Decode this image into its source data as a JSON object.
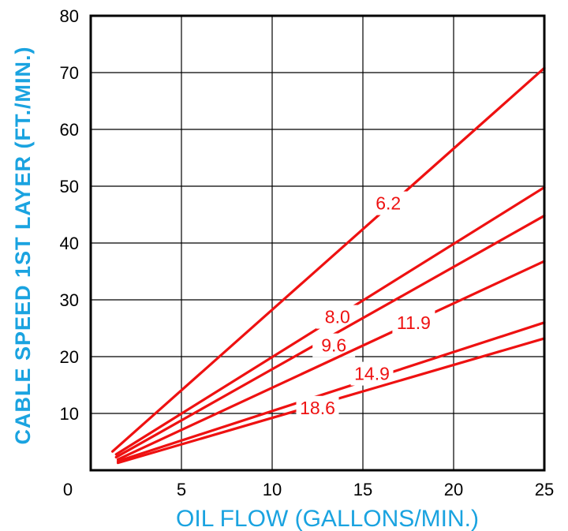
{
  "chart_data": {
    "type": "line",
    "xlabel": "OIL FLOW (GALLONS/MIN.)",
    "ylabel": "CABLE SPEED 1ST LAYER (FT./MIN.)",
    "xlim": [
      0,
      25
    ],
    "ylim": [
      0,
      80
    ],
    "xticks": [
      0,
      5,
      10,
      15,
      20,
      25
    ],
    "yticks": [
      10,
      20,
      30,
      40,
      50,
      60,
      70,
      80
    ],
    "grid": true,
    "line_color": "#ee1111",
    "label_color": "#1aa3e0",
    "series": [
      {
        "name": "6.2",
        "x": [
          1.2,
          25
        ],
        "y": [
          3.3,
          70.8
        ],
        "label_at": [
          16.4,
          47
        ]
      },
      {
        "name": "8.0",
        "x": [
          1.4,
          25
        ],
        "y": [
          2.8,
          49.8
        ],
        "label_at": [
          13.6,
          27
        ]
      },
      {
        "name": "9.6",
        "x": [
          1.4,
          25
        ],
        "y": [
          2.3,
          44.8
        ],
        "label_at": [
          13.4,
          22
        ]
      },
      {
        "name": "11.9",
        "x": [
          1.5,
          25
        ],
        "y": [
          1.9,
          36.8
        ],
        "label_at": [
          17.8,
          26
        ]
      },
      {
        "name": "14.9",
        "x": [
          1.5,
          25
        ],
        "y": [
          1.6,
          26.0
        ],
        "label_at": [
          15.5,
          17
        ]
      },
      {
        "name": "18.6",
        "x": [
          1.5,
          25
        ],
        "y": [
          1.3,
          23.2
        ],
        "label_at": [
          12.5,
          11
        ]
      }
    ]
  }
}
